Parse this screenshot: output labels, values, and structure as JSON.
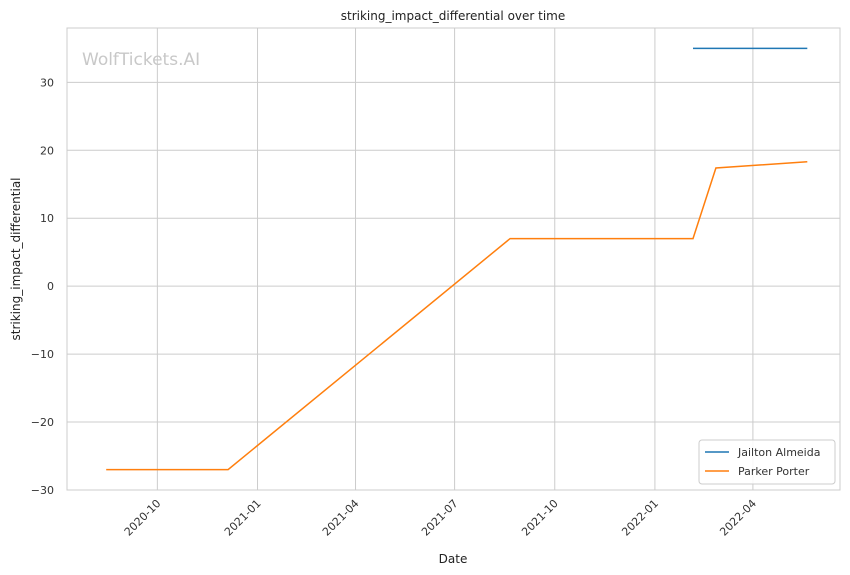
{
  "chart_data": {
    "type": "line",
    "title": "striking_impact_differential over time",
    "xlabel": "Date",
    "ylabel": "striking_impact_differential",
    "watermark": "WolfTickets.AI",
    "x_type": "date",
    "xlim": [
      "2020-07-10",
      "2022-06-20"
    ],
    "ylim": [
      -30,
      38
    ],
    "x_ticks": [
      "2020-10-01",
      "2021-01-01",
      "2021-04-01",
      "2021-07-01",
      "2021-10-01",
      "2022-01-01",
      "2022-04-01"
    ],
    "x_tick_labels": [
      "2020-10",
      "2021-01",
      "2021-04",
      "2021-07",
      "2021-10",
      "2022-01",
      "2022-04"
    ],
    "y_ticks": [
      -30,
      -20,
      -10,
      0,
      10,
      20,
      30
    ],
    "y_tick_labels": [
      "−30",
      "−20",
      "−10",
      "0",
      "10",
      "20",
      "30"
    ],
    "grid": true,
    "legend_position": "bottom-right",
    "series": [
      {
        "name": "Jailton Almeida",
        "color": "#1f77b4",
        "x": [
          "2022-02-05",
          "2022-05-21"
        ],
        "y": [
          35,
          35
        ]
      },
      {
        "name": "Parker Porter",
        "color": "#ff7f0e",
        "x": [
          "2020-08-15",
          "2020-12-05",
          "2021-08-21",
          "2022-02-05",
          "2022-02-26",
          "2022-05-21"
        ],
        "y": [
          -27,
          -27,
          7,
          7,
          17.4,
          18.3
        ]
      }
    ]
  }
}
